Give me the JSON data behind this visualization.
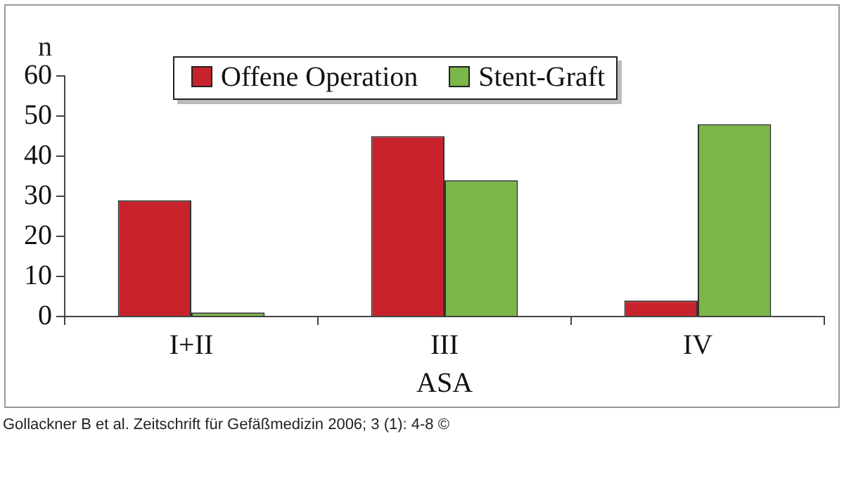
{
  "chart_data": {
    "type": "bar",
    "xlabel": "ASA",
    "ylabel": "n",
    "categories": [
      "I+II",
      "III",
      "IV"
    ],
    "series": [
      {
        "name": "Offene Operation",
        "color": "#c8232c",
        "values": [
          29,
          45,
          4
        ]
      },
      {
        "name": "Stent-Graft",
        "color": "#7ab648",
        "values": [
          1,
          34,
          48
        ]
      }
    ],
    "ylim": [
      0,
      60
    ],
    "yticks": [
      0,
      10,
      20,
      30,
      40,
      50,
      60
    ],
    "grid": false,
    "legend": "top",
    "annotations": [
      "Gollackner B et al. Zeitschrift für Gefäßmedizin 2006; 3 (1): 4-8 ©"
    ]
  }
}
